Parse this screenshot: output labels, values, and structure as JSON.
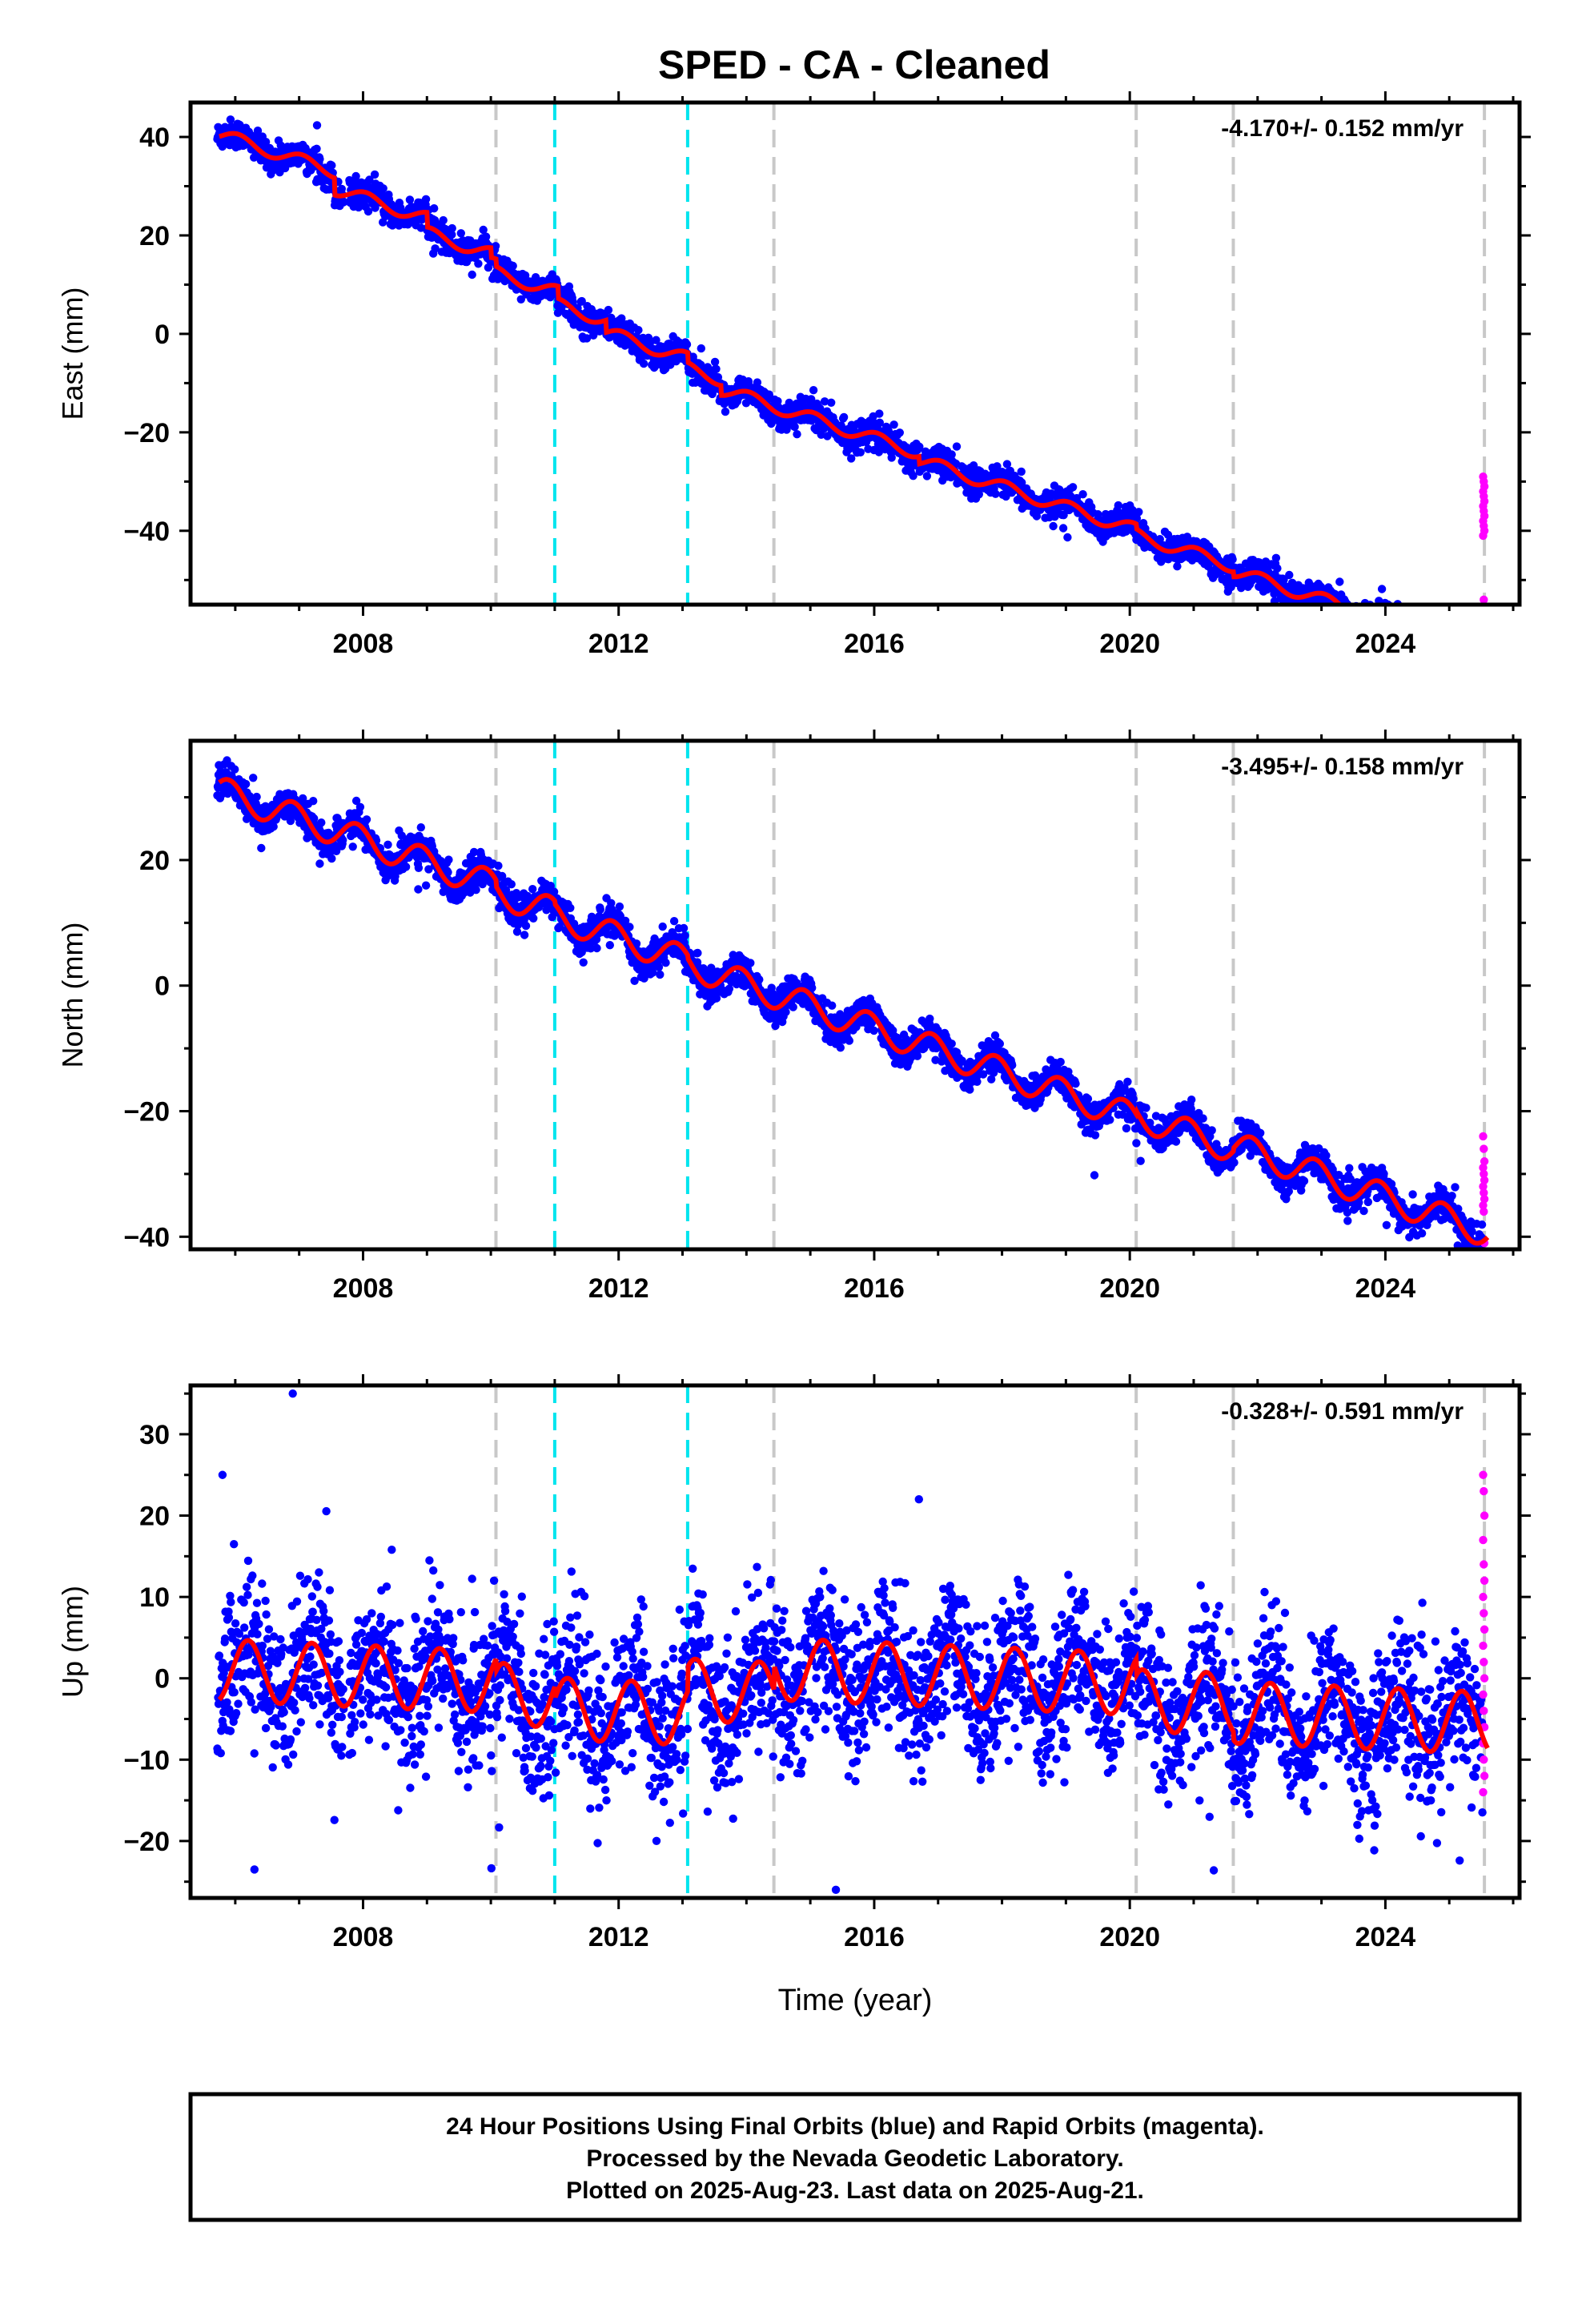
{
  "title": "SPED  - CA - Cleaned",
  "footer": {
    "line1": "24 Hour Positions Using Final Orbits (blue) and Rapid Orbits (magenta).",
    "line2": "Processed by the Nevada Geodetic Laboratory.",
    "line3": "Plotted on 2025-Aug-23. Last data on 2025-Aug-21."
  },
  "colors": {
    "final": "#0000ff",
    "rapid": "#ff00ff",
    "model": "#ff0000",
    "gray_event": "#c8c8c8",
    "cyan_event": "#00e5ee"
  },
  "events": {
    "gray": [
      2010.08,
      2014.43,
      2020.1,
      2021.62,
      2025.55
    ],
    "cyan": [
      2011.0,
      2013.08
    ]
  },
  "chart_data": [
    {
      "type": "scatter",
      "component": "east",
      "ylabel": "East (mm)",
      "rate_label": "-4.170+/- 0.152 mm/yr",
      "xlim": [
        2005.3,
        2026.1
      ],
      "ylim": [
        -55,
        47
      ],
      "xticks": [
        2008,
        2012,
        2016,
        2020,
        2024
      ],
      "yticks": [
        -40,
        -20,
        0,
        20,
        40
      ],
      "grid": false,
      "model": {
        "start": 2005.75,
        "end": 2025.6,
        "intercept_at_start": 40.5,
        "rate": -4.17,
        "annual_amp": 1.3,
        "annual_phase": 0.2,
        "offsets": [
          {
            "t": 2007.55,
            "dy": -3.5
          },
          {
            "t": 2009.0,
            "dy": -3.0
          },
          {
            "t": 2010.0,
            "dy": -2.0
          },
          {
            "t": 2010.08,
            "dy": -1.5
          },
          {
            "t": 2011.05,
            "dy": -2.5
          },
          {
            "t": 2011.8,
            "dy": -2.5
          },
          {
            "t": 2013.08,
            "dy": -2.0
          },
          {
            "t": 2013.6,
            "dy": -2.0
          },
          {
            "t": 2016.7,
            "dy": -1.5
          },
          {
            "t": 2020.1,
            "dy": -1.0
          },
          {
            "t": 2021.62,
            "dy": -1.0
          },
          {
            "t": 2024.9,
            "dy": -1.5
          }
        ]
      },
      "scatter_noise": 1.4,
      "final_series": {
        "start": 2005.72,
        "end": 2025.52
      },
      "rapid_points": [
        -29,
        -30,
        -31,
        -32,
        -33,
        -34,
        -35,
        -36,
        -37,
        -38,
        -39,
        -40,
        -41,
        -54
      ]
    },
    {
      "type": "scatter",
      "component": "north",
      "ylabel": "North (mm)",
      "rate_label": "-3.495+/- 0.158 mm/yr",
      "xlim": [
        2005.3,
        2026.1
      ],
      "ylim": [
        -42,
        39
      ],
      "xticks": [
        2008,
        2012,
        2016,
        2020,
        2024
      ],
      "yticks": [
        -40,
        -20,
        0,
        20
      ],
      "grid": false,
      "model": {
        "start": 2005.75,
        "end": 2025.6,
        "intercept_at_start": 31.0,
        "rate": -3.495,
        "annual_amp": 2.3,
        "annual_phase": 0.35,
        "offsets": [
          {
            "t": 2010.08,
            "dy": -1.0
          },
          {
            "t": 2011.0,
            "dy": -0.5
          },
          {
            "t": 2013.08,
            "dy": -0.5
          },
          {
            "t": 2020.1,
            "dy": 0.5
          },
          {
            "t": 2021.62,
            "dy": 0.5
          }
        ]
      },
      "scatter_noise": 1.3,
      "final_series": {
        "start": 2005.72,
        "end": 2025.52
      },
      "rapid_points": [
        -24,
        -26,
        -28,
        -29,
        -30,
        -31,
        -32,
        -33,
        -34,
        -35,
        -36,
        -41
      ]
    },
    {
      "type": "scatter",
      "component": "up",
      "ylabel": "Up (mm)",
      "xlabel": "Time (year)",
      "rate_label": "-0.328+/- 0.591 mm/yr",
      "xlim": [
        2005.3,
        2026.1
      ],
      "ylim": [
        -27,
        36
      ],
      "xticks": [
        2008,
        2012,
        2016,
        2020,
        2024
      ],
      "yticks": [
        -20,
        -10,
        0,
        10,
        20,
        30
      ],
      "grid": false,
      "model": {
        "start": 2005.75,
        "end": 2025.6,
        "intercept_at_start": 1.0,
        "rate": -0.328,
        "annual_amp": 3.8,
        "annual_phase": 0.05,
        "offsets": [
          {
            "t": 2010.08,
            "dy": -1.5
          },
          {
            "t": 2011.0,
            "dy": -1.5
          },
          {
            "t": 2013.08,
            "dy": 3.0
          },
          {
            "t": 2014.43,
            "dy": 3.0
          },
          {
            "t": 2020.1,
            "dy": -2.0
          },
          {
            "t": 2021.62,
            "dy": -1.0
          }
        ]
      },
      "scatter_noise": 4.5,
      "final_series": {
        "start": 2005.72,
        "end": 2025.52
      },
      "outliers": [
        {
          "t": 2006.9,
          "y": 35
        },
        {
          "t": 2005.8,
          "y": 25
        },
        {
          "t": 2006.3,
          "y": -23.5
        },
        {
          "t": 2015.4,
          "y": -26
        },
        {
          "t": 2016.7,
          "y": 22
        }
      ],
      "rapid_points": [
        25,
        23,
        20,
        17,
        14,
        12,
        10,
        8,
        6,
        4,
        2,
        0,
        -2,
        -4,
        -6,
        -8,
        -10,
        -12,
        -14
      ]
    }
  ]
}
